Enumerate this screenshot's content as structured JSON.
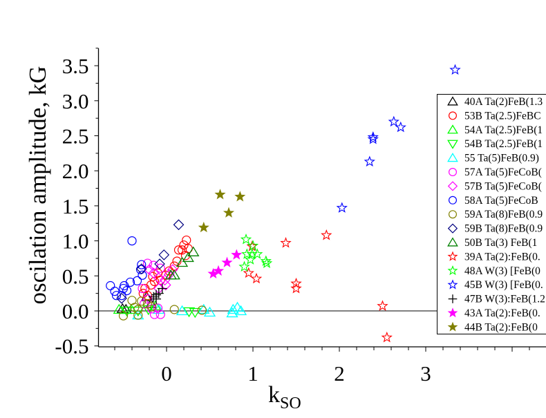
{
  "chart_data": {
    "type": "scatter",
    "title": "",
    "xlabel": {
      "main": "k",
      "sub": "SO"
    },
    "ylabel": "oscilation amplitude, kG",
    "xlim": [
      -0.79,
      4.39
    ],
    "ylim": [
      -0.5,
      3.75
    ],
    "xticks": [
      0,
      1,
      2,
      3
    ],
    "xtick_labels": [
      "0",
      "1",
      "2",
      "3"
    ],
    "yticks": [
      -0.5,
      0.0,
      0.5,
      1.0,
      1.5,
      2.0,
      2.5,
      3.0,
      3.5
    ],
    "ytick_labels": [
      "-0.5",
      "0.0",
      "0.5",
      "1.0",
      "1.5",
      "2.0",
      "2.5",
      "3.0",
      "3.5"
    ],
    "zero_line": true,
    "grid": false,
    "legend_position": "right",
    "series": [
      {
        "name": "40A Ta(2)FeB(1.3",
        "marker": "triangle",
        "color": "#000000",
        "points": [
          [
            -0.23,
            0.2
          ],
          [
            -0.18,
            0.1
          ],
          [
            -0.51,
            0.03
          ],
          [
            -0.47,
            0.02
          ]
        ]
      },
      {
        "name": "53B Ta(2.5)FeBC",
        "marker": "circle",
        "color": "#ff0000",
        "points": [
          [
            0.23,
            1.01
          ],
          [
            0.2,
            0.94
          ],
          [
            0.18,
            0.87
          ],
          [
            0.14,
            0.87
          ],
          [
            0.25,
            0.89
          ],
          [
            0.22,
            0.79
          ],
          [
            0.12,
            0.71
          ],
          [
            0.09,
            0.64
          ],
          [
            0.03,
            0.57
          ],
          [
            -0.01,
            0.51
          ],
          [
            -0.07,
            0.44
          ],
          [
            -0.14,
            0.42
          ],
          [
            -0.18,
            0.37
          ],
          [
            -0.25,
            0.32
          ],
          [
            -0.27,
            0.25
          ],
          [
            -0.22,
            0.22
          ],
          [
            -0.16,
            0.49
          ],
          [
            -0.1,
            0.54
          ]
        ]
      },
      {
        "name": "54A Ta(2.5)FeB(1",
        "marker": "triangle",
        "color": "#00ff00",
        "points": [
          [
            -0.55,
            0.02
          ],
          [
            -0.41,
            0.02
          ],
          [
            -0.13,
            0.07
          ]
        ]
      },
      {
        "name": "54B Ta(2.5)FeB(1",
        "marker": "triangle-down",
        "color": "#00ff00",
        "points": [
          [
            0.26,
            -0.01
          ],
          [
            0.33,
            -0.02
          ],
          [
            -0.46,
            0.0
          ],
          [
            -0.33,
            0.0
          ],
          [
            -0.21,
            0.02
          ]
        ]
      },
      {
        "name": "55 Ta(5)FeB(0.9)",
        "marker": "triangle",
        "color": "#00ffff",
        "points": [
          [
            0.77,
            0.02
          ],
          [
            0.82,
            0.05
          ],
          [
            0.76,
            -0.03
          ],
          [
            0.86,
            0.0
          ],
          [
            0.5,
            -0.02
          ],
          [
            0.43,
            0.02
          ],
          [
            0.18,
            0.0
          ],
          [
            -0.33,
            -0.06
          ],
          [
            -0.09,
            0.02
          ]
        ]
      },
      {
        "name": "57A Ta(5)FeCoB(",
        "marker": "circle",
        "color": "#ff00ff",
        "points": [
          [
            -0.22,
            0.68
          ],
          [
            -0.15,
            0.65
          ],
          [
            -0.07,
            0.61
          ],
          [
            -0.28,
            0.32
          ],
          [
            -0.22,
            0.17
          ],
          [
            -0.17,
            0.03
          ],
          [
            -0.1,
            0.04
          ],
          [
            -0.07,
            -0.05
          ],
          [
            -0.14,
            -0.05
          ],
          [
            -0.26,
            0.1
          ]
        ]
      },
      {
        "name": "57B Ta(5)FeCoB(",
        "marker": "diamond",
        "color": "#ff00ff",
        "points": [
          [
            -0.15,
            0.54
          ],
          [
            -0.09,
            0.47
          ],
          [
            -0.02,
            0.44
          ],
          [
            0.03,
            0.52
          ],
          [
            0.07,
            0.59
          ],
          [
            -0.01,
            0.37
          ],
          [
            -0.09,
            0.32
          ],
          [
            -0.2,
            0.59
          ]
        ]
      },
      {
        "name": "58A Ta(5)FeCoB",
        "marker": "circle",
        "color": "#0000ff",
        "points": [
          [
            -0.4,
            1.0
          ],
          [
            -0.65,
            0.36
          ],
          [
            -0.6,
            0.28
          ],
          [
            -0.58,
            0.22
          ],
          [
            -0.5,
            0.32
          ],
          [
            -0.49,
            0.36
          ],
          [
            -0.46,
            0.29
          ],
          [
            -0.52,
            0.22
          ],
          [
            -0.42,
            0.41
          ],
          [
            -0.34,
            0.43
          ],
          [
            -0.3,
            0.59
          ],
          [
            -0.29,
            0.66
          ],
          [
            -0.28,
            0.51
          ]
        ]
      },
      {
        "name": "59A Ta(8)FeB(0.9",
        "marker": "circle",
        "color": "#808000",
        "points": [
          [
            -0.4,
            0.15
          ],
          [
            -0.5,
            -0.07
          ],
          [
            -0.37,
            0.05
          ],
          [
            -0.33,
            0.02
          ],
          [
            -0.29,
            0.14
          ],
          [
            -0.17,
            0.06
          ],
          [
            0.09,
            0.02
          ],
          [
            0.41,
            0.01
          ],
          [
            -0.22,
            0.1
          ],
          [
            -0.33,
            -0.06
          ]
        ]
      },
      {
        "name": "59B Ta(8)FeB(0.9",
        "marker": "diamond",
        "color": "#000080",
        "points": [
          [
            0.14,
            1.23
          ],
          [
            -0.03,
            0.8
          ],
          [
            -0.08,
            0.67
          ],
          [
            -0.29,
            0.6
          ],
          [
            -0.52,
            0.18
          ]
        ]
      },
      {
        "name": "50B  Ta(3) FeB(1",
        "marker": "triangle",
        "color": "#008000",
        "points": [
          [
            0.31,
            0.84
          ],
          [
            0.25,
            0.76
          ],
          [
            0.18,
            0.69
          ],
          [
            0.09,
            0.51
          ],
          [
            0.05,
            0.51
          ]
        ]
      },
      {
        "name": "39A Ta(2):FeB(0.",
        "marker": "star",
        "color": "#ff0000",
        "points": [
          [
            1.38,
            0.97
          ],
          [
            1.85,
            1.08
          ],
          [
            0.99,
            0.92
          ],
          [
            0.95,
            0.54
          ],
          [
            1.04,
            0.46
          ],
          [
            1.5,
            0.39
          ],
          [
            1.5,
            0.32
          ],
          [
            2.5,
            0.07
          ],
          [
            2.55,
            -0.38
          ]
        ]
      },
      {
        "name": "48A W(3) [FeB(0",
        "marker": "star",
        "color": "#00ff00",
        "points": [
          [
            0.92,
            1.02
          ],
          [
            1.0,
            0.93
          ],
          [
            0.93,
            0.81
          ],
          [
            0.99,
            0.81
          ],
          [
            1.05,
            0.81
          ],
          [
            0.97,
            0.73
          ],
          [
            0.9,
            0.63
          ],
          [
            1.15,
            0.71
          ],
          [
            1.16,
            0.68
          ]
        ]
      },
      {
        "name": "45B W(3) [FeB(0.",
        "marker": "star",
        "color": "#0000ff",
        "points": [
          [
            3.34,
            3.44
          ],
          [
            2.63,
            2.7
          ],
          [
            2.71,
            2.62
          ],
          [
            2.39,
            2.48
          ],
          [
            2.39,
            2.45
          ],
          [
            2.35,
            2.13
          ],
          [
            2.03,
            1.47
          ]
        ]
      },
      {
        "name": "47B W(3):FeB(1.2",
        "marker": "plus",
        "color": "#000000",
        "points": [
          [
            -0.12,
            0.23
          ],
          [
            -0.09,
            0.25
          ],
          [
            -0.15,
            0.2
          ],
          [
            -0.05,
            0.32
          ],
          [
            -0.12,
            0.17
          ]
        ]
      },
      {
        "name": "43A Ta(2):FeB(0.",
        "marker": "star-filled",
        "color": "#ff00ff",
        "points": [
          [
            0.54,
            0.53
          ],
          [
            0.6,
            0.57
          ],
          [
            0.7,
            0.69
          ],
          [
            0.81,
            0.8
          ]
        ]
      },
      {
        "name": "44B Ta(2):FeB(0",
        "marker": "star-filled",
        "color": "#808000",
        "points": [
          [
            0.62,
            1.66
          ],
          [
            0.85,
            1.63
          ],
          [
            0.72,
            1.4
          ],
          [
            0.43,
            1.19
          ]
        ]
      }
    ]
  }
}
